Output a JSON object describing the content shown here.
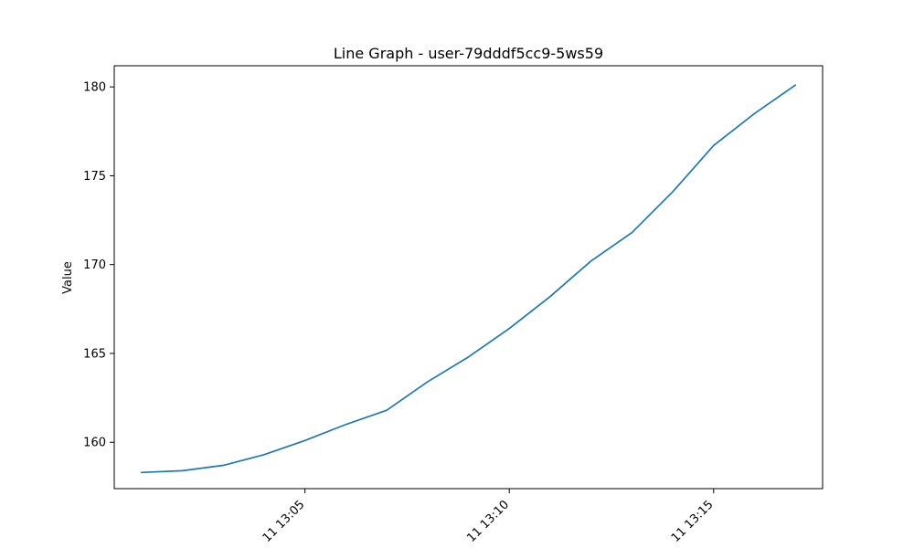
{
  "chart_data": {
    "type": "line",
    "title": "Line Graph - user-79dddf5cc9-5ws59",
    "xlabel": "",
    "ylabel": "Value",
    "x": [
      "13:01",
      "13:02",
      "13:03",
      "13:04",
      "13:05",
      "13:06",
      "13:07",
      "13:08",
      "13:09",
      "13:10",
      "13:11",
      "13:12",
      "13:13",
      "13:14",
      "13:15",
      "13:16",
      "13:17"
    ],
    "series": [
      {
        "color": "#1f77b4",
        "values": [
          158.3,
          158.4,
          158.7,
          159.3,
          160.1,
          161.0,
          161.8,
          163.4,
          164.8,
          166.4,
          168.2,
          170.2,
          171.8,
          174.1,
          176.7,
          178.5,
          180.1
        ]
      }
    ],
    "x_ticks": [
      {
        "value": "13:05",
        "label": "11 13:05"
      },
      {
        "value": "13:10",
        "label": "11 13:10"
      },
      {
        "value": "13:15",
        "label": "11 13:15"
      }
    ],
    "y_ticks": [
      160,
      165,
      170,
      175,
      180
    ],
    "xlim": [
      "13:00:20",
      "13:17:40"
    ],
    "ylim": [
      157.39,
      181.19
    ],
    "grid": false,
    "legend": "none"
  }
}
